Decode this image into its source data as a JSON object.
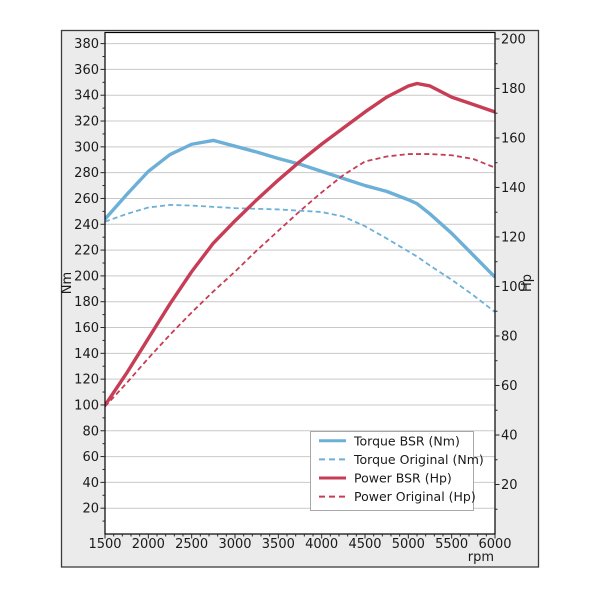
{
  "chart_data": {
    "type": "line",
    "title": "",
    "xlabel": "rpm",
    "ylabel_left": "Nm",
    "ylabel_right": "Hp",
    "xlim": [
      1500,
      6000
    ],
    "left_ylim": [
      0,
      388.6
    ],
    "right_ylim": [
      0,
      202.6
    ],
    "x_major_ticks": [
      1500,
      2000,
      2500,
      3000,
      3500,
      4000,
      4500,
      5000,
      5500,
      6000
    ],
    "x_minor_step": 100,
    "left_major_ticks": [
      20,
      40,
      60,
      80,
      100,
      120,
      140,
      160,
      180,
      200,
      220,
      240,
      260,
      280,
      300,
      320,
      340,
      360,
      380
    ],
    "left_minor_step": 10,
    "right_major_ticks": [
      20,
      40,
      60,
      80,
      100,
      120,
      140,
      160,
      180,
      200
    ],
    "right_minor_step": 10,
    "grid": "horizontal gridlines at left-axis major ticks only",
    "legend_position": "lower-right",
    "x": [
      1500,
      1750,
      2000,
      2250,
      2500,
      2750,
      3000,
      3250,
      3500,
      3750,
      4000,
      4250,
      4500,
      4750,
      5000,
      5100,
      5250,
      5500,
      5750,
      6000
    ],
    "series": [
      {
        "name": "Torque BSR (Nm)",
        "axis": "left",
        "line": "solid",
        "color": "#6cb0d8",
        "width": 3.4,
        "values": [
          244,
          263,
          281,
          294,
          302,
          305,
          300.5,
          296,
          291,
          286.5,
          281,
          275.5,
          270,
          265.5,
          259,
          256,
          248,
          233,
          216,
          199
        ]
      },
      {
        "name": "Torque Original (Nm)",
        "axis": "left",
        "line": "dashed",
        "color": "#6cb0d8",
        "width": 1.8,
        "values": [
          242,
          248,
          253,
          255,
          254.5,
          253.5,
          252.5,
          252,
          251.5,
          250.5,
          249.5,
          246,
          238.5,
          229,
          219,
          215,
          208,
          197,
          185,
          172
        ]
      },
      {
        "name": "Power BSR (Hp)",
        "axis": "right",
        "line": "solid",
        "color": "#c63d55",
        "width": 3.4,
        "values": [
          52,
          65,
          79,
          93,
          106,
          117.5,
          126.5,
          135,
          143,
          150.5,
          157.5,
          164,
          170.5,
          176.5,
          181,
          182,
          181,
          176.5,
          173.5,
          170.5
        ]
      },
      {
        "name": "Power Original (Hp)",
        "axis": "right",
        "line": "dashed",
        "color": "#c63d55",
        "width": 1.8,
        "values": [
          51.5,
          61,
          71,
          80.5,
          89.5,
          98,
          106,
          114.5,
          122.5,
          130.5,
          138,
          145,
          150.5,
          152.5,
          153.5,
          153.5,
          153.5,
          153,
          151.5,
          148
        ]
      }
    ]
  },
  "colors": {
    "page_background": "#ffffff",
    "panel_background": "#ebebeb",
    "panel_border": "#3c3c3c",
    "plot_background": "#ffffff",
    "spine": "#000000",
    "gridline": "#c9c9c9",
    "tick": "#262626",
    "tick_label": "#1a1a1a",
    "legend_background": "#ffffff",
    "legend_border": "#a8a8a8"
  }
}
